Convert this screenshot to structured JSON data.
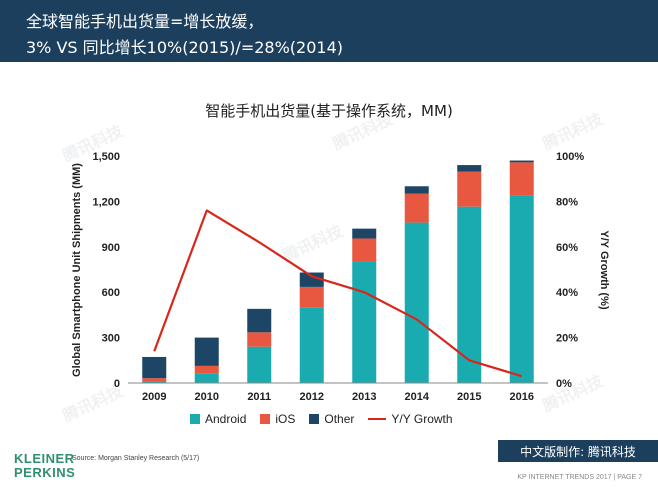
{
  "header": {
    "line1": "全球智能手机出货量=增长放缓，",
    "line2": "3% VS 同比增长10%(2015)/=28%(2014)"
  },
  "watermark": "腾讯科技",
  "chart_data": {
    "type": "bar",
    "stacked": true,
    "title": "智能手机出货量(基于操作系统，MM)",
    "categories": [
      "2009",
      "2010",
      "2011",
      "2012",
      "2013",
      "2014",
      "2015",
      "2016"
    ],
    "series": [
      {
        "name": "Android",
        "color": "#1aabb0",
        "values": [
          7,
          65,
          240,
          500,
          800,
          1060,
          1165,
          1240
        ]
      },
      {
        "name": "iOS",
        "color": "#e8573f",
        "values": [
          25,
          48,
          95,
          135,
          155,
          192,
          232,
          218
        ]
      },
      {
        "name": "Other",
        "color": "#1d4565",
        "values": [
          140,
          187,
          155,
          95,
          65,
          48,
          43,
          12
        ]
      }
    ],
    "line_series": {
      "name": "Y/Y Growth",
      "color": "#d9261c",
      "axis": "right",
      "values": [
        14,
        76,
        62,
        47,
        40,
        28,
        10,
        3
      ]
    },
    "ylabel": "Global Smartphone Unit Shipments (MM)",
    "y2label": "Y/Y Growth (%)",
    "ylim": [
      0,
      1500
    ],
    "y2lim": [
      0,
      100
    ],
    "yticks": [
      "1,500",
      "1,200",
      "900",
      "600",
      "300",
      "0"
    ],
    "y2ticks": [
      "100%",
      "80%",
      "60%",
      "40%",
      "20%",
      "0%"
    ],
    "legend_position": "bottom"
  },
  "source": "Source: Morgan Stanley Research (5/17)",
  "logo": {
    "line1": "KLEINER",
    "line2": "PERKINS"
  },
  "badge": "中文版制作: 腾讯科技",
  "footer": "KP INTERNET TRENDS 2017  |  PAGE 7"
}
